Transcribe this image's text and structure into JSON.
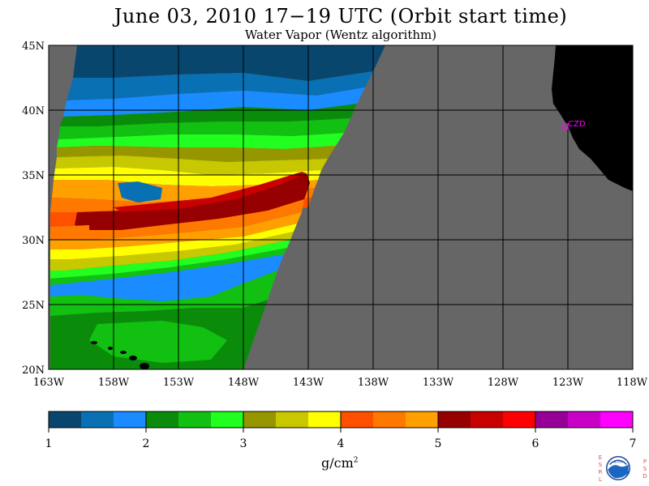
{
  "title": "June 03, 2010   17−19 UTC   (Orbit start time)",
  "subtitle": "Water Vapor (Wentz algorithm)",
  "map": {
    "lat_range": [
      20,
      45
    ],
    "lon_range": [
      -163,
      -118
    ],
    "lat_ticks": [
      "45N",
      "40N",
      "35N",
      "30N",
      "25N",
      "20N"
    ],
    "lon_ticks": [
      "163W",
      "158W",
      "153W",
      "148W",
      "143W",
      "138W",
      "133W",
      "128W",
      "123W",
      "118W"
    ],
    "station_label": "CZD",
    "station_color": "#ff00ff",
    "land_color": "#000000",
    "no_data_color": "#666666"
  },
  "colorbar": {
    "colors": [
      "#08466e",
      "#0a70b4",
      "#1a8cff",
      "#0a8c0a",
      "#12c012",
      "#20ff20",
      "#969600",
      "#c8c800",
      "#ffff00",
      "#ff5000",
      "#ff7800",
      "#ffa000",
      "#960000",
      "#c80000",
      "#ff0000",
      "#960096",
      "#c800c8",
      "#ff00ff"
    ],
    "tick_labels": [
      "1",
      "2",
      "3",
      "4",
      "5",
      "6",
      "7"
    ],
    "unit": "g/cm",
    "unit_exp": "2"
  },
  "logo": {
    "left_letters": [
      "E",
      "S",
      "R",
      "L"
    ],
    "right_letters": [
      "P",
      "S",
      "D"
    ],
    "badge": "NOAA"
  }
}
